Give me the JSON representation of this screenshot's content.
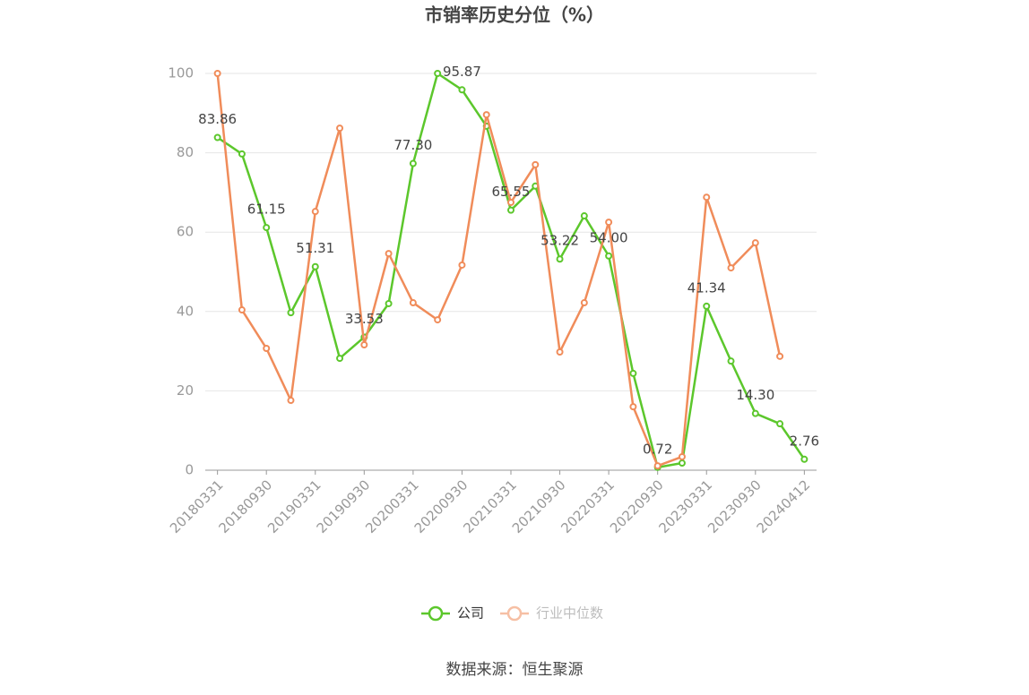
{
  "chart_data": {
    "type": "line",
    "title": "市销率历史分位（%）",
    "source": "数据来源：恒生聚源",
    "categories": [
      "20180331",
      null,
      "20180930",
      null,
      "20190331",
      null,
      "20190930",
      null,
      "20200331",
      null,
      "20200930",
      null,
      "20210331",
      null,
      "20210930",
      null,
      "20220331",
      null,
      "20220930",
      null,
      "20230331",
      null,
      "20230930",
      null,
      "20240412"
    ],
    "series": [
      {
        "name": "公司",
        "color": "#5cc72c",
        "values": [
          83.86,
          79.7,
          61.15,
          39.7,
          51.31,
          28.2,
          33.53,
          42.0,
          77.3,
          100,
          95.87,
          86.7,
          65.55,
          71.6,
          53.22,
          64.1,
          54.0,
          24.4,
          0.72,
          1.8,
          41.34,
          27.5,
          14.3,
          11.7,
          2.76
        ],
        "value_labels": [
          "83.86",
          null,
          "61.15",
          null,
          "51.31",
          null,
          "33.53",
          null,
          "77.30",
          null,
          "95.87",
          null,
          "65.55",
          null,
          "53.22",
          null,
          "54.00",
          null,
          "0.72",
          null,
          "41.34",
          null,
          "14.30",
          null,
          "2.76"
        ]
      },
      {
        "name": "行业中位数",
        "color": "#f08c5a",
        "values": [
          100,
          40.4,
          30.7,
          17.6,
          65.2,
          86.2,
          31.6,
          54.6,
          42.2,
          37.9,
          51.7,
          89.6,
          67.5,
          77.0,
          29.8,
          42.2,
          62.5,
          16.0,
          1.1,
          3.4,
          68.8,
          51.0,
          57.3,
          28.7,
          null
        ]
      }
    ],
    "ylim": [
      0,
      100
    ],
    "yticks": [
      0,
      20,
      40,
      60,
      80,
      100
    ],
    "grid": true,
    "legend": "bottom"
  }
}
